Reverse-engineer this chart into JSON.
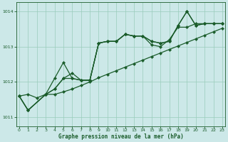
{
  "xlabel": "Graphe pression niveau de la mer (hPa)",
  "bg_color": "#cce8e8",
  "grid_color": "#99ccbb",
  "line_color": "#1a5c2a",
  "ylim": [
    1010.75,
    1014.25
  ],
  "xlim": [
    -0.3,
    23.3
  ],
  "yticks": [
    1011,
    1012,
    1013,
    1014
  ],
  "xticks": [
    0,
    1,
    2,
    3,
    4,
    5,
    6,
    7,
    8,
    9,
    10,
    11,
    12,
    13,
    14,
    15,
    16,
    17,
    18,
    19,
    20,
    21,
    22,
    23
  ],
  "series": {
    "s1_x": [
      0,
      1,
      2,
      3,
      4,
      5,
      6,
      7,
      8,
      9,
      10,
      11,
      12,
      13,
      14,
      15,
      16,
      17,
      18,
      19,
      20,
      21,
      22,
      23
    ],
    "s1_y": [
      1011.6,
      1011.65,
      1011.55,
      1011.65,
      1011.65,
      1011.72,
      1011.8,
      1011.9,
      1012.0,
      1012.12,
      1012.22,
      1012.32,
      1012.42,
      1012.52,
      1012.62,
      1012.72,
      1012.82,
      1012.92,
      1013.02,
      1013.12,
      1013.22,
      1013.32,
      1013.42,
      1013.52
    ],
    "s2_x": [
      0,
      1,
      3,
      4,
      5,
      6,
      7,
      8,
      9,
      10,
      11,
      12,
      13,
      14,
      15,
      16,
      17,
      18,
      19,
      20,
      21,
      22,
      23
    ],
    "s2_y": [
      1011.6,
      1011.2,
      1011.65,
      1011.8,
      1012.1,
      1012.25,
      1012.05,
      1012.05,
      1013.1,
      1013.15,
      1013.15,
      1013.35,
      1013.3,
      1013.3,
      1013.15,
      1013.1,
      1013.15,
      1013.6,
      1014.0,
      1013.6,
      1013.65,
      1013.65,
      1013.65
    ],
    "s3_x": [
      0,
      1,
      3,
      4,
      5,
      6,
      7,
      8,
      9,
      10,
      11,
      12,
      13,
      14,
      15,
      16,
      17,
      18,
      19,
      20,
      21,
      22,
      23
    ],
    "s3_y": [
      1011.6,
      1011.2,
      1011.65,
      1012.1,
      1012.55,
      1012.1,
      1012.05,
      1012.05,
      1013.1,
      1013.15,
      1013.15,
      1013.35,
      1013.3,
      1013.3,
      1013.05,
      1013.0,
      1013.2,
      1013.55,
      1013.55,
      1013.65,
      1013.65,
      1013.65,
      1013.65
    ],
    "s4_x": [
      0,
      1,
      3,
      4,
      5,
      6,
      7,
      8,
      9,
      10,
      11,
      12,
      13,
      14,
      15,
      16,
      17,
      18,
      19,
      20,
      21,
      22,
      23
    ],
    "s4_y": [
      1011.6,
      1011.2,
      1011.65,
      1011.8,
      1012.1,
      1012.1,
      1012.05,
      1012.05,
      1013.1,
      1013.15,
      1013.15,
      1013.35,
      1013.3,
      1013.3,
      1013.15,
      1013.1,
      1013.15,
      1013.6,
      1014.0,
      1013.6,
      1013.65,
      1013.65,
      1013.65
    ]
  },
  "marker": "D",
  "markersize": 2.2,
  "linewidth": 0.9
}
